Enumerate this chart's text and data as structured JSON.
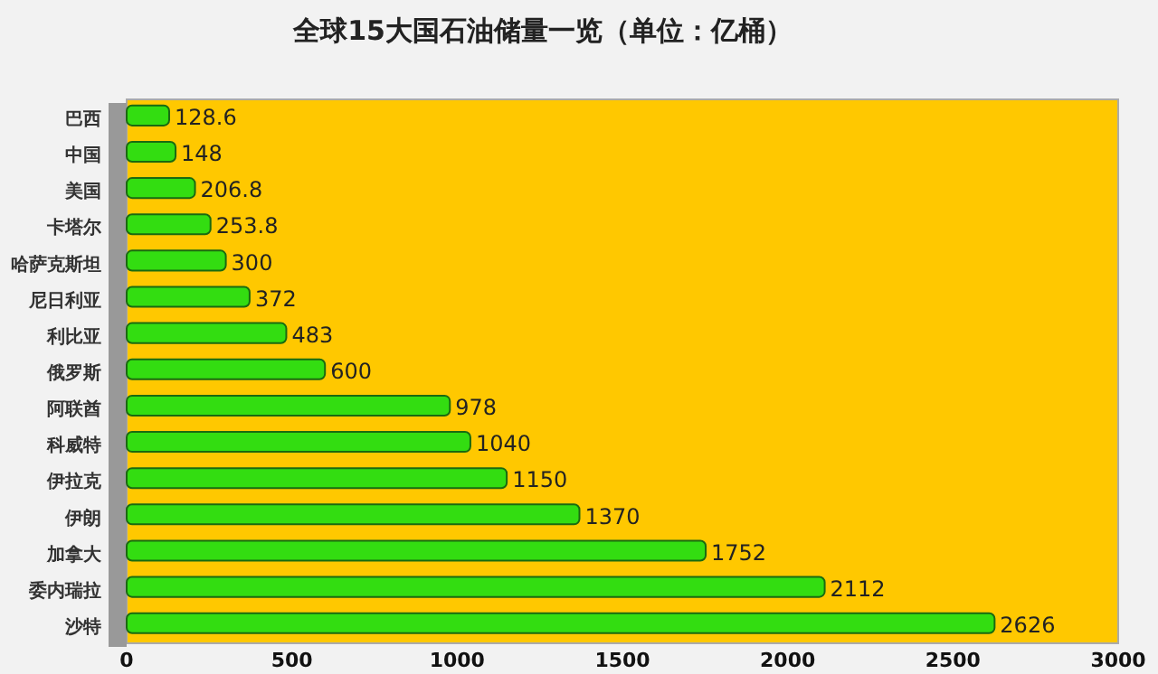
{
  "chart_data": {
    "type": "bar",
    "orientation": "horizontal",
    "title": "全球15大国石油储量一览（单位：亿桶）",
    "categories": [
      "巴西",
      "中国",
      "美国",
      "卡塔尔",
      "哈萨克斯坦",
      "尼日利亚",
      "利比亚",
      "俄罗斯",
      "阿联酋",
      "科威特",
      "伊拉克",
      "伊朗",
      "加拿大",
      "委内瑞拉",
      "沙特"
    ],
    "values": [
      128.6,
      148,
      206.8,
      253.8,
      300,
      372,
      483,
      600,
      978,
      1040,
      1150,
      1370,
      1752,
      2112,
      2626
    ],
    "color": "#33dd11",
    "xlim": [
      0,
      3000
    ],
    "xticks": [
      0,
      500,
      1000,
      1500,
      2000,
      2500,
      3000
    ],
    "data_labels": true
  }
}
